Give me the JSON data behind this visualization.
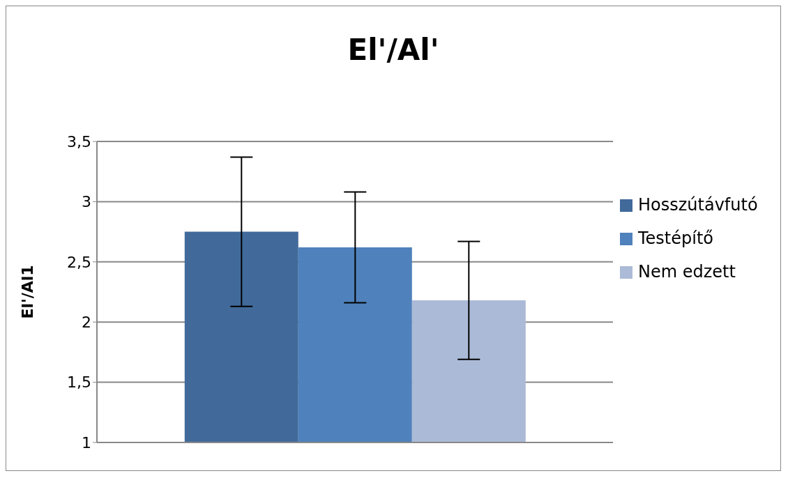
{
  "chart_data": {
    "type": "bar",
    "title": "El'/Al'",
    "ylabel": "El'/Al1",
    "categories": [
      null
    ],
    "series": [
      {
        "name": "Hosszútávfutó",
        "color": "#416a9b",
        "values": [
          2.75
        ],
        "errors": [
          0.62
        ]
      },
      {
        "name": "Testépítő",
        "color": "#4f81bc",
        "values": [
          2.62
        ],
        "errors": [
          0.46
        ]
      },
      {
        "name": "Nem edzett",
        "color": "#abbad7",
        "values": [
          2.18
        ],
        "errors": [
          0.49
        ]
      }
    ],
    "ylim": [
      1,
      3.5
    ],
    "yticks": [
      1,
      {
        "value": 1.5,
        "label": "1,5"
      },
      2,
      {
        "value": 2.5,
        "label": "2,5"
      },
      3,
      {
        "value": 3.5,
        "label": "3,5"
      }
    ],
    "grid": "y",
    "legend": "right"
  }
}
